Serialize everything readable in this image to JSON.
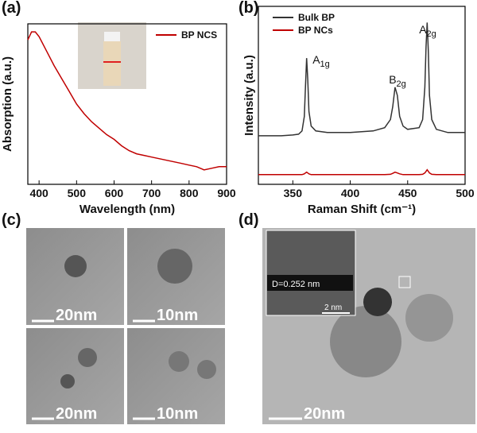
{
  "chart_data": [
    {
      "type": "line",
      "panel_label": "(a)",
      "xlabel": "Wavelength (nm)",
      "ylabel": "Absorption (a.u.)",
      "x": [
        370,
        380,
        390,
        400,
        420,
        440,
        460,
        480,
        500,
        520,
        540,
        560,
        580,
        600,
        620,
        640,
        660,
        680,
        700,
        720,
        740,
        760,
        780,
        800,
        820,
        840,
        860,
        880,
        900
      ],
      "series": [
        {
          "name": "BP NCS",
          "color": "#c00000",
          "values": [
            0.9,
            0.95,
            0.95,
            0.92,
            0.83,
            0.74,
            0.66,
            0.58,
            0.5,
            0.44,
            0.39,
            0.35,
            0.31,
            0.28,
            0.24,
            0.21,
            0.19,
            0.18,
            0.17,
            0.16,
            0.15,
            0.14,
            0.13,
            0.12,
            0.11,
            0.09,
            0.1,
            0.11,
            0.11
          ]
        }
      ],
      "xlim": [
        370,
        900
      ],
      "xticks": [
        400,
        500,
        600,
        700,
        800,
        900
      ],
      "ylim": [
        0,
        1
      ],
      "legend": "upper right"
    },
    {
      "type": "line",
      "panel_label": "(b)",
      "xlabel": "Raman Shift  (cm⁻¹)",
      "ylabel": "Intensity (a.u.)",
      "x": [
        320,
        330,
        340,
        350,
        355,
        358,
        360,
        361,
        362,
        363,
        364,
        366,
        370,
        380,
        400,
        420,
        430,
        435,
        437,
        439,
        441,
        443,
        446,
        450,
        460,
        463,
        465,
        466,
        467,
        468,
        469,
        471,
        475,
        485,
        500
      ],
      "series": [
        {
          "name": "Bulk BP",
          "color": "#333333",
          "values": [
            0.3,
            0.3,
            0.3,
            0.305,
            0.31,
            0.33,
            0.42,
            0.6,
            0.78,
            0.65,
            0.45,
            0.36,
            0.33,
            0.32,
            0.32,
            0.33,
            0.35,
            0.4,
            0.48,
            0.6,
            0.55,
            0.42,
            0.36,
            0.34,
            0.35,
            0.4,
            0.6,
            0.85,
            1.0,
            0.82,
            0.55,
            0.4,
            0.34,
            0.32,
            0.32
          ]
        },
        {
          "name": "BP NCs",
          "color": "#c00000",
          "values": [
            0.06,
            0.06,
            0.06,
            0.06,
            0.06,
            0.06,
            0.065,
            0.07,
            0.075,
            0.07,
            0.065,
            0.06,
            0.06,
            0.06,
            0.06,
            0.06,
            0.06,
            0.062,
            0.068,
            0.075,
            0.07,
            0.065,
            0.06,
            0.06,
            0.06,
            0.062,
            0.07,
            0.08,
            0.09,
            0.08,
            0.07,
            0.062,
            0.06,
            0.06,
            0.06
          ]
        }
      ],
      "annotations": [
        {
          "text": "A",
          "sub": "1g"
        },
        {
          "text": "B",
          "sub": "2g"
        },
        {
          "text": "A",
          "sub": "2g"
        }
      ],
      "xlim": [
        320,
        500
      ],
      "xticks": [
        350,
        400,
        450,
        500
      ],
      "ylim": [
        0,
        1.1
      ],
      "legend": "upper left"
    }
  ],
  "images": {
    "c": {
      "panel_label": "(c)",
      "tiles": [
        "20nm",
        "10nm",
        "20nm",
        "10nm"
      ]
    },
    "d": {
      "panel_label": "(d)",
      "scale": "20nm",
      "inset_label": "D=0.252 nm",
      "inset_scale": "2 nm"
    }
  }
}
